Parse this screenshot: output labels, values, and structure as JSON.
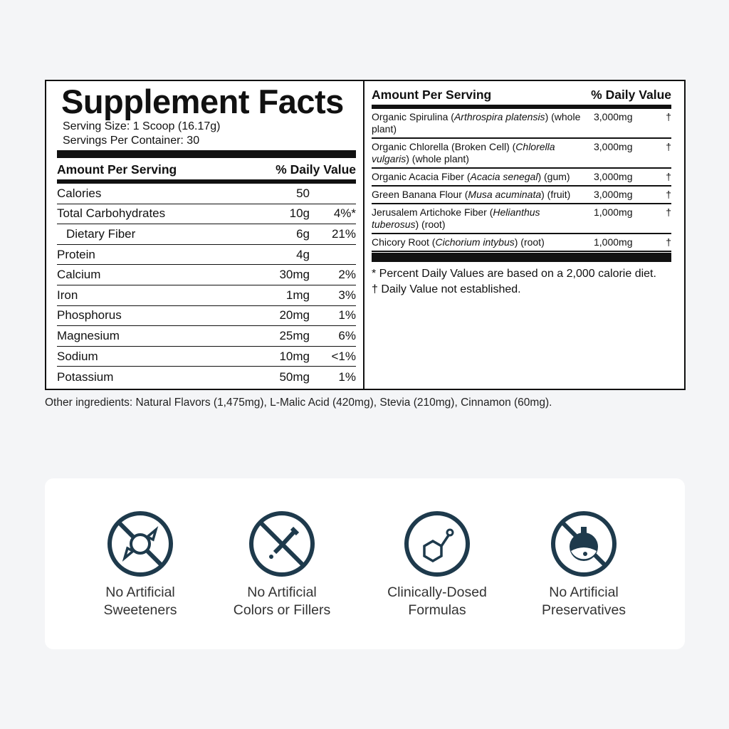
{
  "facts": {
    "title": "Supplement Facts",
    "serving_size": "Serving Size: 1 Scoop (16.17g)",
    "servings_per_container": "Servings Per Container: 30",
    "header_amount": "Amount Per Serving",
    "header_dv": "% Daily Value",
    "nutrients": [
      {
        "name": "Calories",
        "amount": "50",
        "dv": ""
      },
      {
        "name": "Total Carbohydrates",
        "amount": "10g",
        "dv": "4%*"
      },
      {
        "name": "Dietary Fiber",
        "amount": "6g",
        "dv": "21%"
      },
      {
        "name": "Protein",
        "amount": "4g",
        "dv": ""
      },
      {
        "name": "Calcium",
        "amount": "30mg",
        "dv": "2%"
      },
      {
        "name": "Iron",
        "amount": "1mg",
        "dv": "3%"
      },
      {
        "name": "Phosphorus",
        "amount": "20mg",
        "dv": "1%"
      },
      {
        "name": "Magnesium",
        "amount": "25mg",
        "dv": "6%"
      },
      {
        "name": "Sodium",
        "amount": "10mg",
        "dv": "<1%"
      },
      {
        "name": "Potassium",
        "amount": "50mg",
        "dv": "1%"
      }
    ],
    "ingredients": [
      {
        "name": "Organic Spirulina (",
        "latin": "Arthrospira platensis",
        "rest": ") (whole plant)",
        "amount": "3,000mg",
        "dv": "†"
      },
      {
        "name": "Organic Chlorella (Broken Cell) (",
        "latin": "Chlorella vulgaris",
        "rest": ") (whole plant)",
        "amount": "3,000mg",
        "dv": "†"
      },
      {
        "name": "Organic Acacia Fiber (",
        "latin": "Acacia senegal",
        "rest": ") (gum)",
        "amount": "3,000mg",
        "dv": "†"
      },
      {
        "name": "Green Banana Flour (",
        "latin": "Musa acuminata",
        "rest": ") (fruit)",
        "amount": "3,000mg",
        "dv": "†"
      },
      {
        "name": "Jerusalem Artichoke Fiber (",
        "latin": "Helianthus tuberosus",
        "rest": ") (root)",
        "amount": "1,000mg",
        "dv": "†"
      },
      {
        "name": "Chicory Root (",
        "latin": "Cichorium intybus",
        "rest": ") (root)",
        "amount": "1,000mg",
        "dv": "†"
      }
    ],
    "footnote_1": "* Percent Daily Values are based on a 2,000 calorie diet.",
    "footnote_2": "† Daily Value not established."
  },
  "other_ingredients": "Other ingredients: Natural Flavors (1,475mg), L-Malic Acid (420mg), Stevia (210mg), Cinnamon (60mg).",
  "features": [
    {
      "icon": "no-candy-icon",
      "line1": "No Artificial",
      "line2": "Sweeteners"
    },
    {
      "icon": "no-dropper-icon",
      "line1": "No Artificial",
      "line2": "Colors or Fillers"
    },
    {
      "icon": "molecule-icon",
      "line1": "Clinically-Dosed",
      "line2": "Formulas"
    },
    {
      "icon": "no-flask-icon",
      "line1": "No Artificial",
      "line2": "Preservatives"
    }
  ],
  "icon_color": "#1e3a4c"
}
